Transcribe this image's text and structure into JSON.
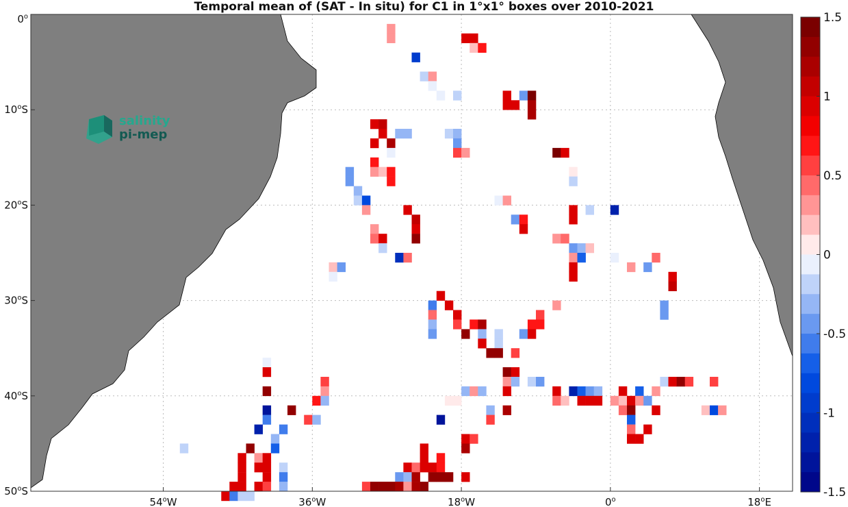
{
  "title": "Temporal mean of (SAT - In situ) for C1 in 1°x1° boxes over 2010-2021",
  "logo": {
    "line1": "salinity",
    "line2": "pi-mep"
  },
  "colors": {
    "land": "#7f7f7f",
    "grid": "#bbbbbb",
    "logo_light": "#25a88e",
    "logo_dark": "#135a52"
  },
  "axes": {
    "lon_range": [
      -70,
      22
    ],
    "lat_range": [
      -50,
      0
    ],
    "x_ticks": [
      {
        "value": -54,
        "deg": "54",
        "hemi": "W"
      },
      {
        "value": -36,
        "deg": "36",
        "hemi": "W"
      },
      {
        "value": -18,
        "deg": "18",
        "hemi": "W"
      },
      {
        "value": 0,
        "deg": "0",
        "hemi": ""
      },
      {
        "value": 18,
        "deg": "18",
        "hemi": "E"
      }
    ],
    "y_ticks": [
      {
        "value": 0,
        "deg": "0",
        "hemi": ""
      },
      {
        "value": -10,
        "deg": "10",
        "hemi": "S"
      },
      {
        "value": -20,
        "deg": "20",
        "hemi": "S"
      },
      {
        "value": -30,
        "deg": "30",
        "hemi": "S"
      },
      {
        "value": -40,
        "deg": "40",
        "hemi": "S"
      },
      {
        "value": -50,
        "deg": "50",
        "hemi": "S"
      }
    ]
  },
  "colorbar": {
    "min": -1.5,
    "max": 1.5,
    "ticks": [
      {
        "value": 1.5,
        "label": "1.5"
      },
      {
        "value": 1,
        "label": "1"
      },
      {
        "value": 0.5,
        "label": "0.5"
      },
      {
        "value": 0,
        "label": "0"
      },
      {
        "value": -0.5,
        "label": "-0.5"
      },
      {
        "value": -1,
        "label": "-1"
      },
      {
        "value": -1.5,
        "label": "-1.5"
      }
    ]
  },
  "chart_data": {
    "type": "heatmap",
    "value_units": "SAT - In situ",
    "cells": [
      [
        -27,
        -1,
        0.3
      ],
      [
        -27,
        -2,
        0.3
      ],
      [
        -18,
        -2,
        0.9
      ],
      [
        -17,
        -2,
        0.9
      ],
      [
        -17,
        -3,
        0.2
      ],
      [
        -16,
        -3,
        0.7
      ],
      [
        -24,
        -4,
        -0.9
      ],
      [
        -23,
        -6,
        -0.2
      ],
      [
        -22,
        -6,
        0.3
      ],
      [
        -22,
        -7,
        -0.1
      ],
      [
        -21,
        -8,
        -0.1
      ],
      [
        -19,
        -8,
        -0.2
      ],
      [
        -13,
        -8,
        0.9
      ],
      [
        -11,
        -8,
        -0.5
      ],
      [
        -10,
        -8,
        1.4
      ],
      [
        -13,
        -9,
        0.9
      ],
      [
        -12,
        -9,
        0.9
      ],
      [
        -10,
        -9,
        1.2
      ],
      [
        -10,
        -10,
        1.2
      ],
      [
        -29,
        -11,
        0.9
      ],
      [
        -28,
        -11,
        1.1
      ],
      [
        -28,
        -12,
        0.9
      ],
      [
        -26,
        -12,
        -0.3
      ],
      [
        -25,
        -12,
        -0.3
      ],
      [
        -20,
        -12,
        -0.2
      ],
      [
        -19,
        -12,
        -0.3
      ],
      [
        -29,
        -13,
        0.9
      ],
      [
        -27,
        -13,
        1.2
      ],
      [
        -19,
        -13,
        -0.5
      ],
      [
        -27,
        -14,
        -0.1
      ],
      [
        -19,
        -14,
        0.5
      ],
      [
        -18,
        -14,
        0.3
      ],
      [
        -7,
        -14,
        1.4
      ],
      [
        -6,
        -14,
        0.9
      ],
      [
        -29,
        -15,
        0.7
      ],
      [
        -32,
        -16,
        -0.5
      ],
      [
        -29,
        -16,
        0.3
      ],
      [
        -28,
        -16,
        0.2
      ],
      [
        -27,
        -16,
        0.7
      ],
      [
        -5,
        -16,
        0.1
      ],
      [
        -32,
        -17,
        -0.5
      ],
      [
        -27,
        -17,
        0.7
      ],
      [
        -5,
        -17,
        -0.2
      ],
      [
        -31,
        -18,
        -0.3
      ],
      [
        -31,
        -19,
        -0.2
      ],
      [
        -30,
        -19,
        -0.8
      ],
      [
        -14,
        -19,
        -0.1
      ],
      [
        -13,
        -19,
        0.3
      ],
      [
        -30,
        -20,
        0.3
      ],
      [
        -25,
        -20,
        0.9
      ],
      [
        -5,
        -20,
        0.9
      ],
      [
        -3,
        -20,
        -0.2
      ],
      [
        0,
        -20,
        -1.2
      ],
      [
        -24,
        -21,
        1.1
      ],
      [
        -12,
        -21,
        -0.4
      ],
      [
        -11,
        -21,
        0.7
      ],
      [
        -5,
        -21,
        0.9
      ],
      [
        -29,
        -22,
        0.3
      ],
      [
        -24,
        -22,
        0.9
      ],
      [
        -11,
        -22,
        0.9
      ],
      [
        -29,
        -23,
        0.4
      ],
      [
        -28,
        -23,
        0.9
      ],
      [
        -24,
        -23,
        1.3
      ],
      [
        -7,
        -23,
        0.3
      ],
      [
        -6,
        -23,
        0.4
      ],
      [
        -28,
        -24,
        -0.2
      ],
      [
        -5,
        -24,
        -0.4
      ],
      [
        -4,
        -24,
        -0.3
      ],
      [
        -3,
        -24,
        0.2
      ],
      [
        -26,
        -25,
        -1.1
      ],
      [
        -25,
        -25,
        0.4
      ],
      [
        -5,
        -25,
        0.3
      ],
      [
        -4,
        -25,
        -0.7
      ],
      [
        0,
        -25,
        -0.1
      ],
      [
        5,
        -25,
        0.4
      ],
      [
        -34,
        -26,
        0.2
      ],
      [
        -33,
        -26,
        -0.5
      ],
      [
        -5,
        -26,
        0.9
      ],
      [
        2,
        -26,
        0.3
      ],
      [
        4,
        -26,
        -0.5
      ],
      [
        -34,
        -27,
        -0.1
      ],
      [
        -5,
        -27,
        0.9
      ],
      [
        7,
        -27,
        0.9
      ],
      [
        7,
        -28,
        1.1
      ],
      [
        -21,
        -29,
        0.9
      ],
      [
        -22,
        -30,
        -0.6
      ],
      [
        -20,
        -30,
        0.9
      ],
      [
        -7,
        -30,
        0.3
      ],
      [
        6,
        -30,
        -0.4
      ],
      [
        -22,
        -31,
        0.4
      ],
      [
        -19,
        -31,
        0.9
      ],
      [
        -9,
        -31,
        0.5
      ],
      [
        6,
        -31,
        -0.4
      ],
      [
        -22,
        -32,
        -0.3
      ],
      [
        -19,
        -32,
        0.5
      ],
      [
        -17,
        -32,
        0.7
      ],
      [
        -16,
        -32,
        1.2
      ],
      [
        -10,
        -32,
        0.7
      ],
      [
        -9,
        -32,
        0.7
      ],
      [
        -22,
        -33,
        -0.4
      ],
      [
        -18,
        -33,
        1.3
      ],
      [
        -16,
        -33,
        -0.3
      ],
      [
        -14,
        -33,
        -0.2
      ],
      [
        -11,
        -33,
        -0.4
      ],
      [
        -10,
        -33,
        0.9
      ],
      [
        -16,
        -34,
        0.9
      ],
      [
        -14,
        -34,
        -0.2
      ],
      [
        -15,
        -35,
        1.3
      ],
      [
        -14,
        -35,
        1.3
      ],
      [
        -12,
        -35,
        0.5
      ],
      [
        -42,
        -36,
        -0.1
      ],
      [
        -42,
        -37,
        0.9
      ],
      [
        -13,
        -37,
        1.3
      ],
      [
        -12,
        -37,
        0.9
      ],
      [
        -35,
        -38,
        0.5
      ],
      [
        -13,
        -38,
        0.3
      ],
      [
        -12,
        -38,
        -0.3
      ],
      [
        -10,
        -38,
        -0.2
      ],
      [
        -9,
        -38,
        -0.5
      ],
      [
        6,
        -38,
        -0.2
      ],
      [
        7,
        -38,
        0.9
      ],
      [
        8,
        -38,
        1.3
      ],
      [
        9,
        -38,
        0.5
      ],
      [
        12,
        -38,
        0.6
      ],
      [
        -42,
        -39,
        1.3
      ],
      [
        -35,
        -39,
        0.3
      ],
      [
        -18,
        -39,
        -0.3
      ],
      [
        -17,
        -39,
        0.3
      ],
      [
        -16,
        -39,
        -0.3
      ],
      [
        -13,
        -39,
        0.9
      ],
      [
        -7,
        -39,
        0.9
      ],
      [
        -5,
        -39,
        -1.2
      ],
      [
        -4,
        -39,
        -0.7
      ],
      [
        -3,
        -39,
        -0.5
      ],
      [
        -2,
        -39,
        -0.3
      ],
      [
        1,
        -39,
        0.9
      ],
      [
        3,
        -39,
        -0.7
      ],
      [
        5,
        -39,
        0.3
      ],
      [
        -36,
        -40,
        0.7
      ],
      [
        -35,
        -40,
        -0.3
      ],
      [
        -20,
        -40,
        0.1
      ],
      [
        -19,
        -40,
        0.1
      ],
      [
        -7,
        -40,
        0.4
      ],
      [
        -6,
        -40,
        0.2
      ],
      [
        -4,
        -40,
        0.9
      ],
      [
        -3,
        -40,
        0.9
      ],
      [
        -2,
        -40,
        0.9
      ],
      [
        0,
        -40,
        0.3
      ],
      [
        1,
        -40,
        0.2
      ],
      [
        2,
        -40,
        0.9
      ],
      [
        3,
        -40,
        0.3
      ],
      [
        4,
        -40,
        -0.5
      ],
      [
        -42,
        -41,
        -1.3
      ],
      [
        -39,
        -41,
        1.3
      ],
      [
        -15,
        -41,
        -0.3
      ],
      [
        -13,
        -41,
        1.2
      ],
      [
        1,
        -41,
        0.4
      ],
      [
        2,
        -41,
        1.3
      ],
      [
        5,
        -41,
        0.9
      ],
      [
        11,
        -41,
        0.2
      ],
      [
        12,
        -41,
        -0.8
      ],
      [
        13,
        -41,
        0.3
      ],
      [
        -42,
        -42,
        -0.6
      ],
      [
        -37,
        -42,
        0.5
      ],
      [
        -36,
        -42,
        -0.3
      ],
      [
        -21,
        -42,
        -1.3
      ],
      [
        -15,
        -42,
        0.6
      ],
      [
        2,
        -42,
        -0.7
      ],
      [
        -43,
        -43,
        -1.2
      ],
      [
        -40,
        -43,
        -0.6
      ],
      [
        4,
        -43,
        0.9
      ],
      [
        2,
        -43,
        0.4
      ],
      [
        -41,
        -44,
        -0.3
      ],
      [
        2,
        -44,
        0.9
      ],
      [
        3,
        -44,
        0.9
      ],
      [
        -18,
        -44,
        0.9
      ],
      [
        -17,
        -44,
        0.5
      ],
      [
        -52,
        -45,
        -0.2
      ],
      [
        -44,
        -45,
        1.3
      ],
      [
        -41,
        -45,
        -0.7
      ],
      [
        -23,
        -45,
        0.9
      ],
      [
        -18,
        -45,
        1.2
      ],
      [
        -45,
        -46,
        0.9
      ],
      [
        -43,
        -46,
        0.3
      ],
      [
        -42,
        -46,
        0.9
      ],
      [
        -23,
        -46,
        0.9
      ],
      [
        -21,
        -46,
        0.7
      ],
      [
        -45,
        -47,
        0.9
      ],
      [
        -43,
        -47,
        0.9
      ],
      [
        -42,
        -47,
        0.9
      ],
      [
        -40,
        -47,
        -0.2
      ],
      [
        -25,
        -47,
        0.9
      ],
      [
        -24,
        -47,
        0.4
      ],
      [
        -23,
        -47,
        0.9
      ],
      [
        -22,
        -47,
        0.9
      ],
      [
        -21,
        -47,
        0.7
      ],
      [
        -45,
        -48,
        0.9
      ],
      [
        -42,
        -48,
        0.9
      ],
      [
        -40,
        -48,
        -0.6
      ],
      [
        -26,
        -48,
        -0.4
      ],
      [
        -25,
        -48,
        -0.3
      ],
      [
        -24,
        -48,
        1.2
      ],
      [
        -22,
        -48,
        1.3
      ],
      [
        -21,
        -48,
        1.3
      ],
      [
        -20,
        -48,
        1.3
      ],
      [
        -18,
        -48,
        0.9
      ],
      [
        -46,
        -49,
        0.9
      ],
      [
        -45,
        -49,
        0.9
      ],
      [
        -43,
        -49,
        0.9
      ],
      [
        -42,
        -49,
        0.5
      ],
      [
        -40,
        -49,
        -0.3
      ],
      [
        -30,
        -49,
        0.5
      ],
      [
        -29,
        -49,
        1.3
      ],
      [
        -28,
        -49,
        1.3
      ],
      [
        -27,
        -49,
        1.3
      ],
      [
        -26,
        -49,
        1.2
      ],
      [
        -25,
        -49,
        0.3
      ],
      [
        -24,
        -49,
        1.2
      ],
      [
        -23,
        -49,
        1.3
      ],
      [
        -47,
        -50,
        0.9
      ],
      [
        -46,
        -50,
        -0.6
      ],
      [
        -45,
        -50,
        -0.2
      ],
      [
        -44,
        -50,
        -0.2
      ]
    ]
  }
}
